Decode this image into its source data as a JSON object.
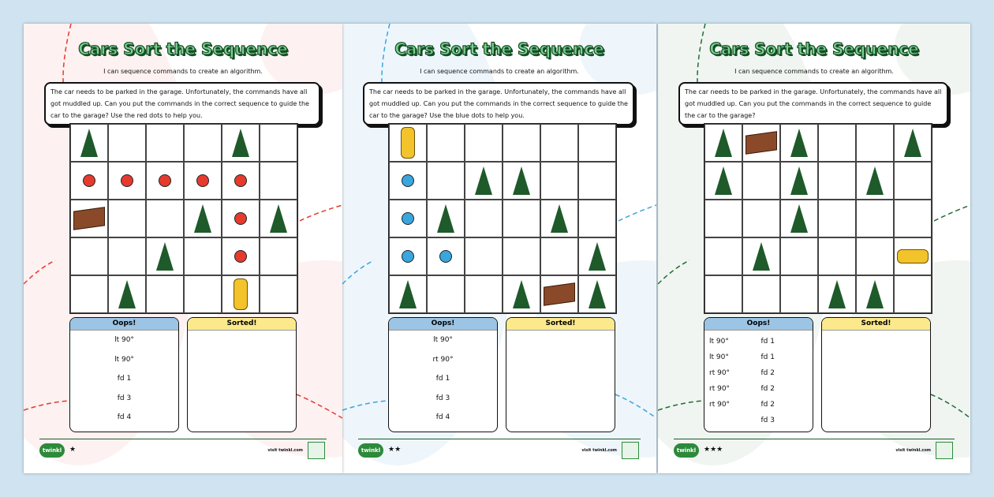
{
  "worksheets": [
    {
      "title": "Cars Sort the Sequence",
      "subtitle": "I can sequence commands to create an algorithm.",
      "instructions": "The car needs to be parked in the garage. Unfortunately, the commands have all got muddled up. Can you put the commands in the correct sequence to guide the car to the garage? Use the red dots to help you.",
      "accent": "#e53a2e",
      "background": "#fde3e3",
      "grid": [
        [
          "tree",
          "",
          "",
          "",
          "tree",
          ""
        ],
        [
          "dot",
          "dot",
          "dot",
          "dot",
          "dot",
          ""
        ],
        [
          "garage",
          "",
          "",
          "tree",
          "dot",
          "tree"
        ],
        [
          "",
          "",
          "tree",
          "",
          "dot",
          ""
        ],
        [
          "",
          "tree",
          "",
          "",
          "car-v",
          ""
        ]
      ],
      "oops_label": "Oops!",
      "sorted_label": "Sorted!",
      "commands": [
        "lt 90°",
        "lt 90°",
        "fd 1",
        "fd 3",
        "fd 4"
      ],
      "stars": "★",
      "logo": "twinkl",
      "visit": "visit twinkl.com"
    },
    {
      "title": "Cars Sort the Sequence",
      "subtitle": "I can sequence commands to create an algorithm.",
      "instructions": "The car needs to be parked in the garage. Unfortunately, the commands have all got muddled up. Can you put the commands in the correct sequence to guide the car to the garage? Use the blue dots to help you.",
      "accent": "#3aa6de",
      "background": "#deeefa",
      "grid": [
        [
          "car-v",
          "",
          "",
          "",
          "",
          ""
        ],
        [
          "dot",
          "",
          "tree",
          "tree",
          "",
          ""
        ],
        [
          "dot",
          "tree",
          "",
          "",
          "tree",
          ""
        ],
        [
          "dot",
          "dot",
          "",
          "",
          "",
          "tree"
        ],
        [
          "tree",
          "",
          "",
          "tree",
          "garage",
          "tree"
        ]
      ],
      "oops_label": "Oops!",
      "sorted_label": "Sorted!",
      "commands": [
        "lt 90°",
        "rt 90°",
        "fd 1",
        "fd 3",
        "fd 4"
      ],
      "stars": "★★",
      "logo": "twinkl",
      "visit": "visit twinkl.com"
    },
    {
      "title": "Cars Sort the Sequence",
      "subtitle": "I can sequence commands to create an algorithm.",
      "instructions": "The car needs to be parked in the garage. Unfortunately, the commands have all got muddled up. Can you put the commands in the correct sequence to guide the car to the garage?",
      "accent": "#1f6e34",
      "background": "#e2ece4",
      "grid": [
        [
          "tree",
          "garage",
          "tree",
          "",
          "",
          "tree"
        ],
        [
          "tree",
          "",
          "tree",
          "",
          "tree",
          ""
        ],
        [
          "",
          "",
          "tree",
          "",
          "",
          ""
        ],
        [
          "",
          "tree",
          "",
          "",
          "",
          "car-h"
        ],
        [
          "",
          "",
          "",
          "tree",
          "tree",
          ""
        ]
      ],
      "oops_label": "Oops!",
      "sorted_label": "Sorted!",
      "commands": [
        "lt 90°",
        "lt 90°",
        "rt 90°",
        "rt 90°",
        "rt 90°",
        "",
        "fd 1",
        "fd 1",
        "fd 2",
        "fd 2",
        "fd 2",
        "fd 3"
      ],
      "stars": "★★★",
      "logo": "twinkl",
      "visit": "visit twinkl.com"
    }
  ]
}
